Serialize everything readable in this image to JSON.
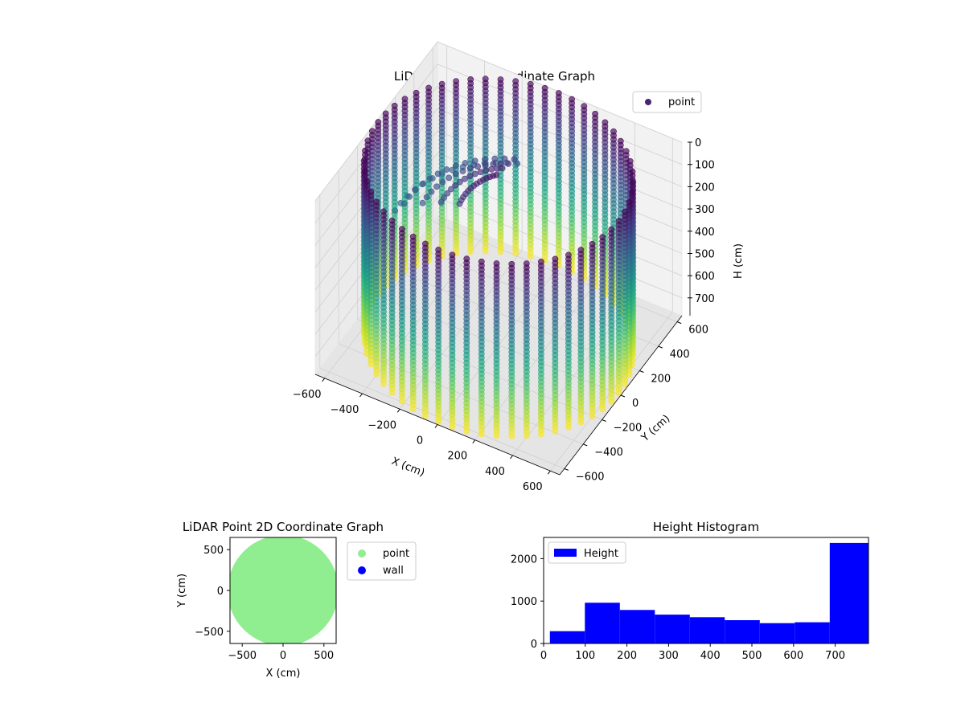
{
  "figure": {
    "background": "#ffffff"
  },
  "chart_data": [
    {
      "type": "scatter3d",
      "title": "LiDAR Point 3D Coordinate Graph",
      "xlabel": "X (cm)",
      "ylabel": "Y (cm)",
      "zlabel": "H (cm)",
      "xlim": [
        -650,
        650
      ],
      "ylim": [
        -650,
        650
      ],
      "zlim": [
        0,
        780
      ],
      "z_inverted": true,
      "xticks": [
        -600,
        -400,
        -200,
        0,
        200,
        400,
        600
      ],
      "yticks": [
        -600,
        -400,
        -200,
        0,
        200,
        400,
        600
      ],
      "zticks": [
        0,
        100,
        200,
        300,
        400,
        500,
        600,
        700
      ],
      "grid": true,
      "colormap": "viridis",
      "legend": {
        "entries": [
          "point"
        ],
        "placement": "top-right"
      },
      "series": [
        {
          "name": "point",
          "description_values": {
            "wall_radius": 640,
            "wall_height_range": [
              0,
              780
            ],
            "wall_columns": 56,
            "interior_arc_radius_range": [
              150,
              500
            ],
            "interior_arc_angle_deg": [
              100,
              180
            ]
          }
        }
      ]
    },
    {
      "type": "scatter",
      "title": "LiDAR Point 2D Coordinate Graph",
      "xlabel": "X (cm)",
      "ylabel": "Y (cm)",
      "xlim": [
        -650,
        650
      ],
      "ylim": [
        -650,
        650
      ],
      "xticks": [
        -500,
        0,
        500
      ],
      "yticks": [
        -500,
        0,
        500
      ],
      "legend": {
        "entries": [
          "point",
          "wall"
        ],
        "placement": "outside-right"
      },
      "series": [
        {
          "name": "point",
          "color": "#90ee90",
          "shape": "filled disk",
          "radius": 640
        },
        {
          "name": "wall",
          "color": "#0000ff",
          "count": 0
        }
      ]
    },
    {
      "type": "bar",
      "title": "Height Histogram",
      "xlabel": "",
      "ylabel": "",
      "xlim": [
        0,
        780
      ],
      "ylim": [
        0,
        2500
      ],
      "xticks": [
        0,
        100,
        200,
        300,
        400,
        500,
        600,
        700
      ],
      "yticks": [
        0,
        1000,
        2000
      ],
      "color": "#0000ff",
      "legend": {
        "entries": [
          "Height"
        ],
        "placement": "top-left"
      },
      "bins": [
        {
          "x0": 15,
          "x1": 99,
          "value": 290
        },
        {
          "x0": 99,
          "x1": 183,
          "value": 960
        },
        {
          "x0": 183,
          "x1": 267,
          "value": 790
        },
        {
          "x0": 267,
          "x1": 351,
          "value": 680
        },
        {
          "x0": 351,
          "x1": 435,
          "value": 620
        },
        {
          "x0": 435,
          "x1": 519,
          "value": 550
        },
        {
          "x0": 519,
          "x1": 603,
          "value": 480
        },
        {
          "x0": 603,
          "x1": 687,
          "value": 500
        },
        {
          "x0": 687,
          "x1": 780,
          "value": 2370
        }
      ]
    }
  ]
}
